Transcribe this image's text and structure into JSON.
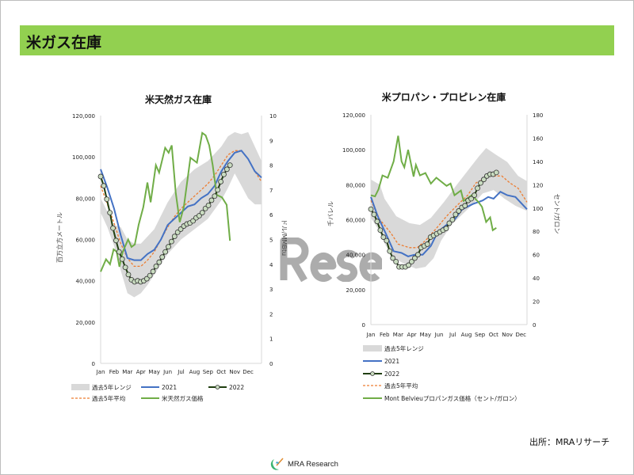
{
  "header": {
    "title": "米ガス在庫"
  },
  "source": "出所：MRAリサーチ",
  "logo_text": "MRA Research",
  "watermark": "Rese",
  "colors": {
    "band": "#d9d9d9",
    "y2021": "#4472c4",
    "y2022": "#203f10",
    "marker": "#c9dcc0",
    "avg": "#ed7d31",
    "price": "#70ad47",
    "header": "#92d050"
  },
  "chart_data": [
    {
      "type": "line",
      "title": "米天然ガス在庫",
      "ylabel": "百万立方メートル",
      "y2label": "ドル/MMBtu",
      "ylim": [
        0,
        120000
      ],
      "y2lim": [
        0,
        10
      ],
      "xlim": [
        0,
        12
      ],
      "yticks": [
        "0",
        "20,000",
        "40,000",
        "60,000",
        "80,000",
        "100,000",
        "120,000"
      ],
      "y2ticks": [
        "0",
        "1",
        "2",
        "3",
        "4",
        "5",
        "6",
        "7",
        "8",
        "9",
        "10"
      ],
      "categories": [
        "Jan",
        "Feb",
        "Mar",
        "Apr",
        "May",
        "Jun",
        "Jul",
        "Aug",
        "Sep",
        "Oct",
        "Nov",
        "Dec"
      ],
      "legend": {
        "range": "過去5年レンジ",
        "y2021": "2021",
        "y2022": "2022",
        "avg": "過去5年平均",
        "price": "米天然ガス価格"
      },
      "range_upper": [
        [
          0,
          80000
        ],
        [
          1,
          67000
        ],
        [
          1.5,
          66000
        ],
        [
          2,
          60000
        ],
        [
          2.5,
          58000
        ],
        [
          3,
          58000
        ],
        [
          4,
          65000
        ],
        [
          5,
          78000
        ],
        [
          6,
          88000
        ],
        [
          7,
          94000
        ],
        [
          8,
          98000
        ],
        [
          9,
          105000
        ],
        [
          9.5,
          110000
        ],
        [
          10,
          112000
        ],
        [
          10.5,
          111000
        ],
        [
          11,
          112000
        ],
        [
          11.5,
          105000
        ],
        [
          12,
          98000
        ]
      ],
      "range_lower": [
        [
          0,
          73000
        ],
        [
          0.5,
          66000
        ],
        [
          1,
          57000
        ],
        [
          1.5,
          45000
        ],
        [
          2,
          34000
        ],
        [
          2.5,
          32000
        ],
        [
          3,
          34000
        ],
        [
          3.5,
          38000
        ],
        [
          4,
          43000
        ],
        [
          5,
          53000
        ],
        [
          6,
          60000
        ],
        [
          7,
          65000
        ],
        [
          8,
          70000
        ],
        [
          9,
          79000
        ],
        [
          9.5,
          85000
        ],
        [
          10,
          92000
        ],
        [
          10.5,
          86000
        ],
        [
          11,
          80000
        ],
        [
          11.5,
          77000
        ],
        [
          12,
          77000
        ]
      ],
      "y2021": [
        [
          0,
          94000
        ],
        [
          0.5,
          85000
        ],
        [
          1,
          75000
        ],
        [
          1.5,
          62000
        ],
        [
          2,
          51000
        ],
        [
          2.5,
          50000
        ],
        [
          3,
          50000
        ],
        [
          3.5,
          53000
        ],
        [
          4,
          55000
        ],
        [
          4.5,
          60000
        ],
        [
          5,
          67000
        ],
        [
          5.5,
          70000
        ],
        [
          6,
          73000
        ],
        [
          6.5,
          76000
        ],
        [
          7,
          77000
        ],
        [
          7.5,
          80000
        ],
        [
          8,
          82000
        ],
        [
          8.5,
          86000
        ],
        [
          9,
          93000
        ],
        [
          9.5,
          98000
        ],
        [
          10,
          102000
        ],
        [
          10.5,
          103000
        ],
        [
          11,
          99000
        ],
        [
          11.5,
          93000
        ],
        [
          12,
          90000
        ]
      ],
      "avg": [
        [
          0,
          86000
        ],
        [
          0.5,
          77000
        ],
        [
          1,
          68000
        ],
        [
          1.5,
          58000
        ],
        [
          2,
          51000
        ],
        [
          2.5,
          47000
        ],
        [
          3,
          47000
        ],
        [
          3.5,
          50000
        ],
        [
          4,
          54000
        ],
        [
          4.5,
          60000
        ],
        [
          5,
          66000
        ],
        [
          5.5,
          71000
        ],
        [
          6,
          75000
        ],
        [
          6.5,
          78000
        ],
        [
          7,
          81000
        ],
        [
          7.5,
          84000
        ],
        [
          8,
          87000
        ],
        [
          8.5,
          91000
        ],
        [
          9,
          96000
        ],
        [
          9.5,
          101000
        ],
        [
          10,
          103000
        ],
        [
          10.5,
          103000
        ],
        [
          11,
          99000
        ],
        [
          11.5,
          93000
        ],
        [
          12,
          88000
        ]
      ],
      "y2022_end": 9.65,
      "y2022": [
        90500,
        86000,
        79500,
        73000,
        65500,
        59500,
        54000,
        50500,
        46500,
        43000,
        40500,
        39500,
        40000,
        39500,
        40000,
        41000,
        42500,
        44500,
        47000,
        49000,
        51500,
        54000,
        56500,
        59000,
        61500,
        63500,
        65000,
        66500,
        67500,
        68000,
        69000,
        70500,
        71500,
        73000,
        75000,
        76500,
        79000,
        81000,
        84000,
        88000,
        91500,
        94000,
        96000
      ],
      "price": [
        [
          0,
          3.7
        ],
        [
          0.4,
          4.2
        ],
        [
          0.7,
          4.0
        ],
        [
          0.97,
          4.6
        ],
        [
          1.2,
          4.5
        ],
        [
          1.4,
          3.9
        ],
        [
          1.65,
          4.5
        ],
        [
          2.05,
          5.0
        ],
        [
          2.3,
          4.7
        ],
        [
          2.55,
          4.8
        ],
        [
          2.84,
          5.6
        ],
        [
          3.18,
          6.3
        ],
        [
          3.49,
          7.3
        ],
        [
          3.73,
          6.5
        ],
        [
          4.12,
          8.0
        ],
        [
          4.36,
          7.7
        ],
        [
          4.81,
          8.7
        ],
        [
          5.07,
          8.5
        ],
        [
          5.3,
          8.8
        ],
        [
          5.6,
          6.9
        ],
        [
          5.9,
          5.7
        ],
        [
          6.2,
          6.3
        ],
        [
          6.7,
          8.3
        ],
        [
          7.18,
          8.1
        ],
        [
          7.58,
          9.3
        ],
        [
          7.83,
          9.2
        ],
        [
          8.1,
          8.8
        ],
        [
          8.36,
          8.0
        ],
        [
          8.66,
          6.8
        ],
        [
          9.05,
          6.7
        ],
        [
          9.4,
          6.4
        ],
        [
          9.65,
          4.95
        ]
      ]
    },
    {
      "type": "line",
      "title": "米プロパン・プロピレン在庫",
      "ylabel": "千バレル",
      "y2label": "セント/ガロン",
      "ylim": [
        0,
        120000
      ],
      "y2lim": [
        0,
        180
      ],
      "xlim": [
        0,
        11.45
      ],
      "yticks": [
        "0",
        "20,000",
        "40,000",
        "60,000",
        "80,000",
        "100,000",
        "120,000"
      ],
      "y2ticks": [
        "0",
        "20",
        "40",
        "60",
        "80",
        "100",
        "120",
        "140",
        "160",
        "180"
      ],
      "categories": [
        "Jan",
        "Feb",
        "Mar",
        "Apr",
        "May",
        "Jun",
        "Jul",
        "Aug",
        "Sep",
        "Oct",
        "Nov",
        "Dec"
      ],
      "legend": {
        "range": "過去5年レンジ",
        "y2021": "2021",
        "y2022": "2022",
        "avg": "過去5年平均",
        "price": "Mont Belvieuプロパンガス価格（セント/ガロン）"
      },
      "range_upper": [
        [
          0,
          83000
        ],
        [
          0.66,
          80000
        ],
        [
          1.0,
          72000
        ],
        [
          1.86,
          62000
        ],
        [
          2.83,
          58000
        ],
        [
          3.6,
          57000
        ],
        [
          4.4,
          61000
        ],
        [
          5.35,
          70000
        ],
        [
          6.3,
          80000
        ],
        [
          7.3,
          90000
        ],
        [
          7.9,
          96000
        ],
        [
          8.45,
          101000
        ],
        [
          9.2,
          97000
        ],
        [
          10,
          93000
        ],
        [
          10.8,
          85000
        ],
        [
          11.45,
          82000
        ]
      ],
      "range_lower": [
        [
          0,
          61000
        ],
        [
          0.5,
          55000
        ],
        [
          1.1,
          45000
        ],
        [
          1.67,
          38000
        ],
        [
          2.4,
          35000
        ],
        [
          3.3,
          32000
        ],
        [
          4.0,
          33000
        ],
        [
          4.6,
          38000
        ],
        [
          5.15,
          48000
        ],
        [
          5.9,
          57000
        ],
        [
          6.7,
          63000
        ],
        [
          7.5,
          69000
        ],
        [
          8.2,
          75000
        ],
        [
          9.0,
          77000
        ],
        [
          9.8,
          72000
        ],
        [
          10.6,
          68000
        ],
        [
          11.45,
          65000
        ]
      ],
      "y2021": [
        [
          0,
          73000
        ],
        [
          0.5,
          62000
        ],
        [
          1.1,
          52000
        ],
        [
          1.67,
          42000
        ],
        [
          2.25,
          41000
        ],
        [
          2.73,
          39000
        ],
        [
          3.2,
          40000
        ],
        [
          3.8,
          40000
        ],
        [
          4.4,
          45000
        ],
        [
          4.9,
          53000
        ],
        [
          5.55,
          57000
        ],
        [
          6.13,
          60000
        ],
        [
          6.7,
          66000
        ],
        [
          7.5,
          69000
        ],
        [
          8.2,
          71000
        ],
        [
          8.6,
          73000
        ],
        [
          9.0,
          72000
        ],
        [
          9.5,
          76000
        ],
        [
          10,
          74000
        ],
        [
          10.6,
          73000
        ],
        [
          11.2,
          68000
        ],
        [
          11.45,
          66000
        ]
      ],
      "avg": [
        [
          0,
          71000
        ],
        [
          0.66,
          60000
        ],
        [
          1.5,
          52000
        ],
        [
          2.0,
          46000
        ],
        [
          2.83,
          44000
        ],
        [
          3.4,
          44000
        ],
        [
          4.0,
          48000
        ],
        [
          4.8,
          55000
        ],
        [
          5.55,
          62000
        ],
        [
          6.3,
          68000
        ],
        [
          7.1,
          74000
        ],
        [
          7.7,
          81000
        ],
        [
          8.2,
          83000
        ],
        [
          8.8,
          85000
        ],
        [
          9.6,
          85000
        ],
        [
          10.2,
          81000
        ],
        [
          10.8,
          78000
        ],
        [
          11.45,
          70000
        ]
      ],
      "y2022_end": 9.2,
      "y2022": [
        66000,
        63000,
        59000,
        54000,
        50000,
        48000,
        42000,
        38000,
        36000,
        33000,
        33000,
        33000,
        34000,
        36000,
        38000,
        40000,
        44000,
        45000,
        46000,
        50000,
        51000,
        52000,
        53000,
        54000,
        55000,
        58000,
        60000,
        63000,
        65000,
        67000,
        68000,
        71000,
        72000,
        74000,
        78000,
        81000,
        83000,
        85000,
        86000,
        86000,
        87000
      ],
      "price": [
        [
          0,
          111
        ],
        [
          0.3,
          110
        ],
        [
          0.56,
          116
        ],
        [
          0.85,
          128
        ],
        [
          1.24,
          126
        ],
        [
          1.67,
          140
        ],
        [
          2.0,
          162
        ],
        [
          2.25,
          140
        ],
        [
          2.45,
          135
        ],
        [
          2.73,
          150
        ],
        [
          3.13,
          127
        ],
        [
          3.3,
          137
        ],
        [
          3.6,
          128
        ],
        [
          4.0,
          130
        ],
        [
          4.4,
          121
        ],
        [
          4.8,
          126
        ],
        [
          5.55,
          119
        ],
        [
          5.84,
          121
        ],
        [
          6.13,
          111
        ],
        [
          6.6,
          115
        ],
        [
          6.8,
          106
        ],
        [
          7.4,
          111
        ],
        [
          7.9,
          105
        ],
        [
          8.15,
          101
        ],
        [
          8.45,
          88
        ],
        [
          8.75,
          92
        ],
        [
          8.94,
          81
        ],
        [
          9.2,
          83
        ]
      ]
    }
  ]
}
